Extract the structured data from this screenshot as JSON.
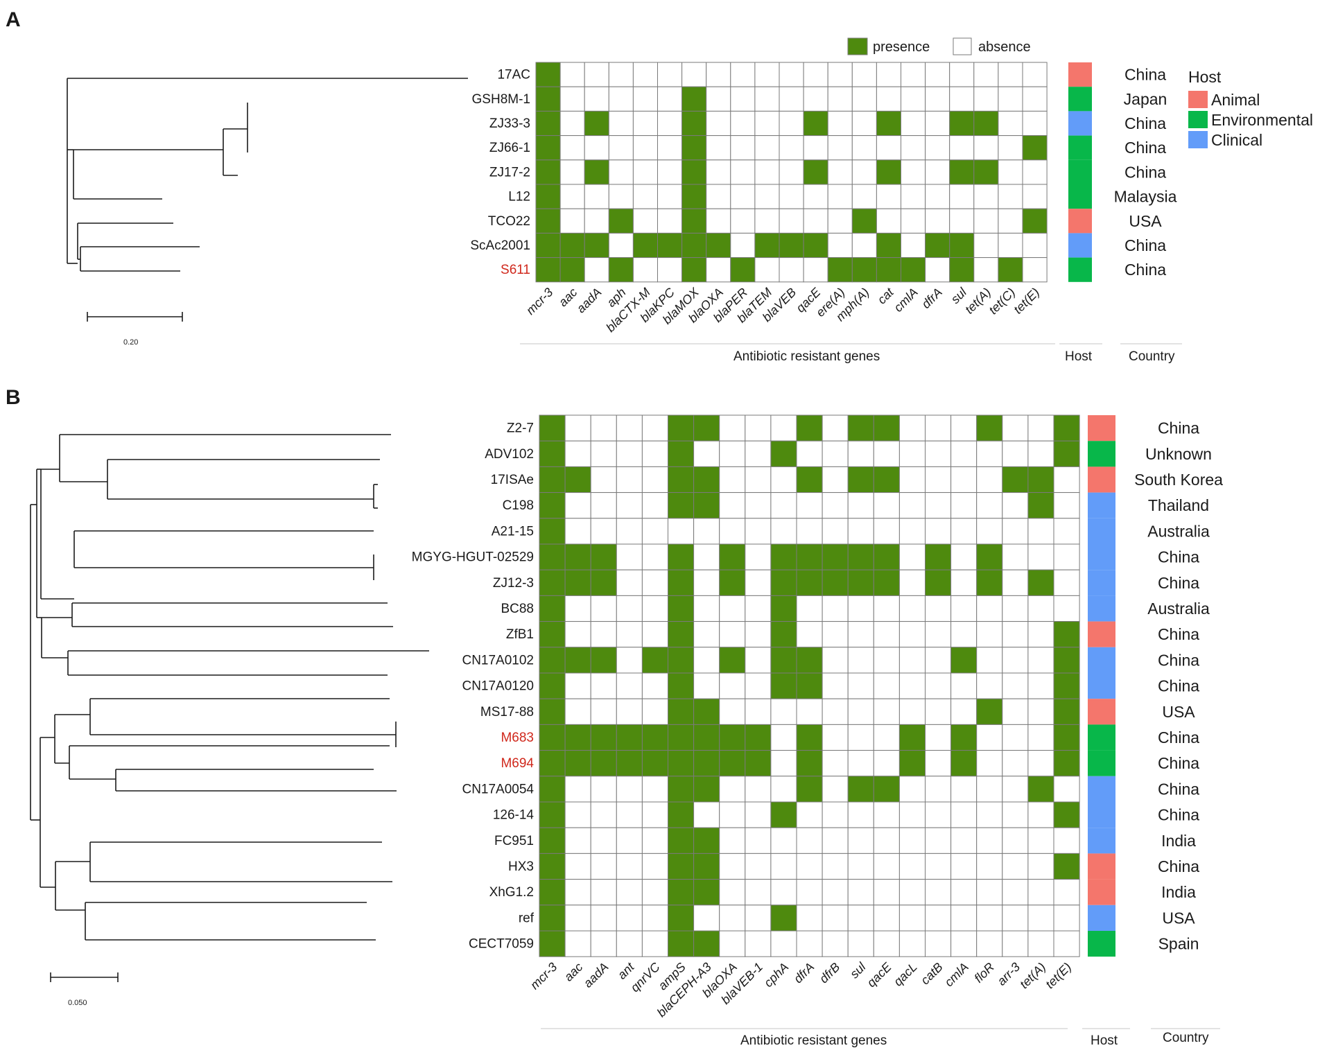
{
  "colors": {
    "presence": "#4e8a0e",
    "absence": "#ffffff",
    "cell_border": "#7a7a7a",
    "Animal": "#f4766c",
    "Environmental": "#08b74a",
    "Clinical": "#629cf9",
    "highlight": "#d0281c"
  },
  "legend": {
    "presence": "presence",
    "absence": "absence"
  },
  "host_legend": {
    "title": "Host",
    "items": [
      "Animal",
      "Environmental",
      "Clinical"
    ]
  },
  "panelA": {
    "letter": "A",
    "scale_label": "0.20",
    "xlabel": "Antibiotic resistant genes",
    "host_label": "Host",
    "country_label": "Country",
    "genes": [
      "mcr-3",
      "aac",
      "aadA",
      "aph",
      "blaCTX-M",
      "blaKPC",
      "blaMOX",
      "blaOXA",
      "blaPER",
      "blaTEM",
      "blaVEB",
      "qacE",
      "ere(A)",
      "mph(A)",
      "cat",
      "cmlA",
      "dfrA",
      "sul",
      "tet(A)",
      "tet(C)",
      "tet(E)"
    ],
    "strains": [
      {
        "name": "17AC",
        "highlight": false,
        "host": "Animal",
        "country": "China",
        "genes": [
          1,
          0,
          0,
          0,
          0,
          0,
          0,
          0,
          0,
          0,
          0,
          0,
          0,
          0,
          0,
          0,
          0,
          0,
          0,
          0,
          0
        ]
      },
      {
        "name": "GSH8M-1",
        "highlight": false,
        "host": "Environmental",
        "country": "Japan",
        "genes": [
          1,
          0,
          0,
          0,
          0,
          0,
          1,
          0,
          0,
          0,
          0,
          0,
          0,
          0,
          0,
          0,
          0,
          0,
          0,
          0,
          0
        ]
      },
      {
        "name": "ZJ33-3",
        "highlight": false,
        "host": "Clinical",
        "country": "China",
        "genes": [
          1,
          0,
          1,
          0,
          0,
          0,
          1,
          0,
          0,
          0,
          0,
          1,
          0,
          0,
          1,
          0,
          0,
          1,
          1,
          0,
          0
        ]
      },
      {
        "name": "ZJ66-1",
        "highlight": false,
        "host": "Environmental",
        "country": "China",
        "genes": [
          1,
          0,
          0,
          0,
          0,
          0,
          1,
          0,
          0,
          0,
          0,
          0,
          0,
          0,
          0,
          0,
          0,
          0,
          0,
          0,
          1
        ]
      },
      {
        "name": "ZJ17-2",
        "highlight": false,
        "host": "Environmental",
        "country": "China",
        "genes": [
          1,
          0,
          1,
          0,
          0,
          0,
          1,
          0,
          0,
          0,
          0,
          1,
          0,
          0,
          1,
          0,
          0,
          1,
          1,
          0,
          0
        ]
      },
      {
        "name": "L12",
        "highlight": false,
        "host": "Environmental",
        "country": "Malaysia",
        "genes": [
          1,
          0,
          0,
          0,
          0,
          0,
          1,
          0,
          0,
          0,
          0,
          0,
          0,
          0,
          0,
          0,
          0,
          0,
          0,
          0,
          0
        ]
      },
      {
        "name": "TCO22",
        "highlight": false,
        "host": "Animal",
        "country": "USA",
        "genes": [
          1,
          0,
          0,
          1,
          0,
          0,
          1,
          0,
          0,
          0,
          0,
          0,
          0,
          1,
          0,
          0,
          0,
          0,
          0,
          0,
          1
        ]
      },
      {
        "name": "ScAc2001",
        "highlight": false,
        "host": "Clinical",
        "country": "China",
        "genes": [
          1,
          1,
          1,
          0,
          1,
          1,
          1,
          1,
          0,
          1,
          1,
          1,
          0,
          0,
          1,
          0,
          1,
          1,
          0,
          0,
          0
        ]
      },
      {
        "name": "S611",
        "highlight": true,
        "host": "Environmental",
        "country": "China",
        "genes": [
          1,
          1,
          0,
          1,
          0,
          0,
          1,
          0,
          1,
          0,
          0,
          0,
          1,
          1,
          1,
          1,
          0,
          1,
          0,
          1,
          0
        ]
      }
    ]
  },
  "panelB": {
    "letter": "B",
    "scale_label": "0.050",
    "xlabel": "Antibiotic resistant genes",
    "host_label": "Host",
    "country_label": "Country",
    "genes": [
      "mcr-3",
      "aac",
      "aadA",
      "ant",
      "qnrVC",
      "ampS",
      "blaCEPH-A3",
      "blaOXA",
      "blaVEB-1",
      "cphA",
      "dfrA",
      "dfrB",
      "sul",
      "qacE",
      "qacL",
      "catB",
      "cmlA",
      "floR",
      "arr-3",
      "tet(A)",
      "tet(E)"
    ],
    "strains": [
      {
        "name": "Z2-7",
        "highlight": false,
        "host": "Animal",
        "country": "China",
        "genes": [
          1,
          0,
          0,
          0,
          0,
          1,
          1,
          0,
          0,
          0,
          1,
          0,
          1,
          1,
          0,
          0,
          0,
          1,
          0,
          0,
          1
        ]
      },
      {
        "name": "ADV102",
        "highlight": false,
        "host": "Environmental",
        "country": "Unknown",
        "genes": [
          1,
          0,
          0,
          0,
          0,
          1,
          0,
          0,
          0,
          1,
          0,
          0,
          0,
          0,
          0,
          0,
          0,
          0,
          0,
          0,
          1
        ]
      },
      {
        "name": "17ISAe",
        "highlight": false,
        "host": "Animal",
        "country": "South Korea",
        "genes": [
          1,
          1,
          0,
          0,
          0,
          1,
          1,
          0,
          0,
          0,
          1,
          0,
          1,
          1,
          0,
          0,
          0,
          0,
          1,
          1,
          0
        ]
      },
      {
        "name": "C198",
        "highlight": false,
        "host": "Clinical",
        "country": "Thailand",
        "genes": [
          1,
          0,
          0,
          0,
          0,
          1,
          1,
          0,
          0,
          0,
          0,
          0,
          0,
          0,
          0,
          0,
          0,
          0,
          0,
          1,
          0
        ]
      },
      {
        "name": "A21-15",
        "highlight": false,
        "host": "Clinical",
        "country": "Australia",
        "genes": [
          1,
          0,
          0,
          0,
          0,
          0,
          0,
          0,
          0,
          0,
          0,
          0,
          0,
          0,
          0,
          0,
          0,
          0,
          0,
          0,
          0
        ]
      },
      {
        "name": "MGYG-HGUT-02529",
        "highlight": false,
        "host": "Clinical",
        "country": "China",
        "genes": [
          1,
          1,
          1,
          0,
          0,
          1,
          0,
          1,
          0,
          1,
          1,
          1,
          1,
          1,
          0,
          1,
          0,
          1,
          0,
          0,
          0
        ]
      },
      {
        "name": "ZJ12-3",
        "highlight": false,
        "host": "Clinical",
        "country": "China",
        "genes": [
          1,
          1,
          1,
          0,
          0,
          1,
          0,
          1,
          0,
          1,
          1,
          1,
          1,
          1,
          0,
          1,
          0,
          1,
          0,
          1,
          0
        ]
      },
      {
        "name": "BC88",
        "highlight": false,
        "host": "Clinical",
        "country": "Australia",
        "genes": [
          1,
          0,
          0,
          0,
          0,
          1,
          0,
          0,
          0,
          1,
          0,
          0,
          0,
          0,
          0,
          0,
          0,
          0,
          0,
          0,
          0
        ]
      },
      {
        "name": "ZfB1",
        "highlight": false,
        "host": "Animal",
        "country": "China",
        "genes": [
          1,
          0,
          0,
          0,
          0,
          1,
          0,
          0,
          0,
          1,
          0,
          0,
          0,
          0,
          0,
          0,
          0,
          0,
          0,
          0,
          1
        ]
      },
      {
        "name": "CN17A0102",
        "highlight": false,
        "host": "Clinical",
        "country": "China",
        "genes": [
          1,
          1,
          1,
          0,
          1,
          1,
          0,
          1,
          0,
          1,
          1,
          0,
          0,
          0,
          0,
          0,
          1,
          0,
          0,
          0,
          1
        ]
      },
      {
        "name": "CN17A0120",
        "highlight": false,
        "host": "Clinical",
        "country": "China",
        "genes": [
          1,
          0,
          0,
          0,
          0,
          1,
          0,
          0,
          0,
          1,
          1,
          0,
          0,
          0,
          0,
          0,
          0,
          0,
          0,
          0,
          1
        ]
      },
      {
        "name": "MS17-88",
        "highlight": false,
        "host": "Animal",
        "country": "USA",
        "genes": [
          1,
          0,
          0,
          0,
          0,
          1,
          1,
          0,
          0,
          0,
          0,
          0,
          0,
          0,
          0,
          0,
          0,
          1,
          0,
          0,
          1
        ]
      },
      {
        "name": "M683",
        "highlight": true,
        "host": "Environmental",
        "country": "China",
        "genes": [
          1,
          1,
          1,
          1,
          1,
          1,
          1,
          1,
          1,
          0,
          1,
          0,
          0,
          0,
          1,
          0,
          1,
          0,
          0,
          0,
          1
        ]
      },
      {
        "name": "M694",
        "highlight": true,
        "host": "Environmental",
        "country": "China",
        "genes": [
          1,
          1,
          1,
          1,
          1,
          1,
          1,
          1,
          1,
          0,
          1,
          0,
          0,
          0,
          1,
          0,
          1,
          0,
          0,
          0,
          1
        ]
      },
      {
        "name": "CN17A0054",
        "highlight": false,
        "host": "Clinical",
        "country": "China",
        "genes": [
          1,
          0,
          0,
          0,
          0,
          1,
          1,
          0,
          0,
          0,
          1,
          0,
          1,
          1,
          0,
          0,
          0,
          0,
          0,
          1,
          0
        ]
      },
      {
        "name": "126-14",
        "highlight": false,
        "host": "Clinical",
        "country": "China",
        "genes": [
          1,
          0,
          0,
          0,
          0,
          1,
          0,
          0,
          0,
          1,
          0,
          0,
          0,
          0,
          0,
          0,
          0,
          0,
          0,
          0,
          1
        ]
      },
      {
        "name": "FC951",
        "highlight": false,
        "host": "Clinical",
        "country": "India",
        "genes": [
          1,
          0,
          0,
          0,
          0,
          1,
          1,
          0,
          0,
          0,
          0,
          0,
          0,
          0,
          0,
          0,
          0,
          0,
          0,
          0,
          0
        ]
      },
      {
        "name": "HX3",
        "highlight": false,
        "host": "Animal",
        "country": "China",
        "genes": [
          1,
          0,
          0,
          0,
          0,
          1,
          1,
          0,
          0,
          0,
          0,
          0,
          0,
          0,
          0,
          0,
          0,
          0,
          0,
          0,
          1
        ]
      },
      {
        "name": "XhG1.2",
        "highlight": false,
        "host": "Animal",
        "country": "India",
        "genes": [
          1,
          0,
          0,
          0,
          0,
          1,
          1,
          0,
          0,
          0,
          0,
          0,
          0,
          0,
          0,
          0,
          0,
          0,
          0,
          0,
          0
        ]
      },
      {
        "name": "ref",
        "highlight": false,
        "host": "Clinical",
        "country": "USA",
        "genes": [
          1,
          0,
          0,
          0,
          0,
          1,
          0,
          0,
          0,
          1,
          0,
          0,
          0,
          0,
          0,
          0,
          0,
          0,
          0,
          0,
          0
        ]
      },
      {
        "name": "CECT7059",
        "highlight": false,
        "host": "Environmental",
        "country": "Spain",
        "genes": [
          1,
          0,
          0,
          0,
          0,
          1,
          1,
          0,
          0,
          0,
          0,
          0,
          0,
          0,
          0,
          0,
          0,
          0,
          0,
          0,
          0
        ]
      }
    ]
  }
}
